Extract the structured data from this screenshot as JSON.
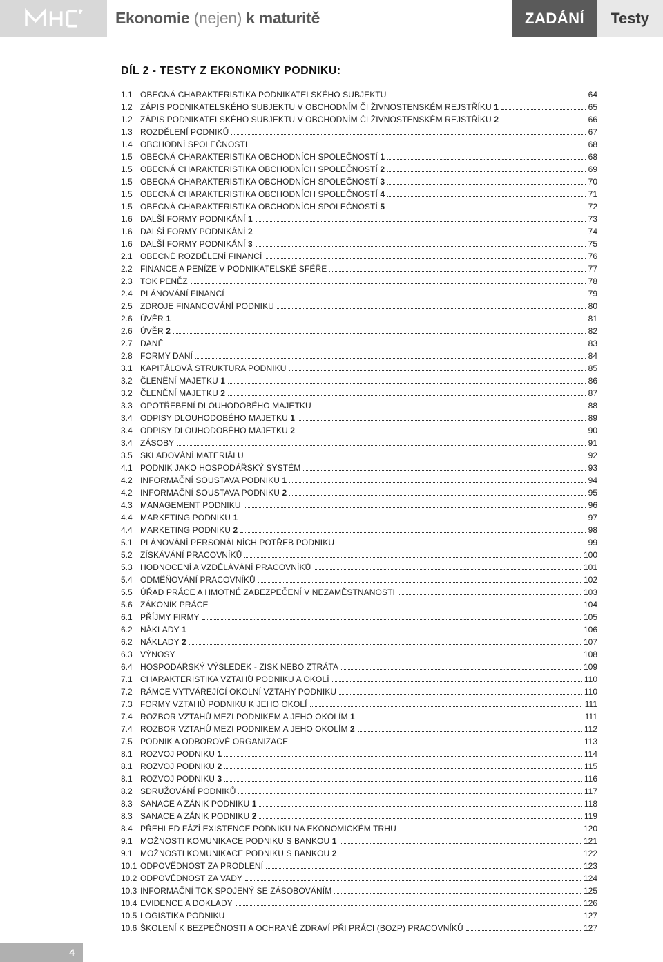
{
  "header": {
    "title_bold1": "Ekonomie",
    "title_light": " (nejen) ",
    "title_bold2": "k maturitě",
    "tag_dark": "ZADÁNÍ",
    "tag_light": "Testy"
  },
  "section_title": "DÍL 2 - TESTY Z EKONOMIKY PODNIKU:",
  "page_number": "4",
  "toc": [
    {
      "num": "1.1",
      "title": "OBECNÁ CHARAKTERISTIKA PODNIKATELSKÉHO SUBJEKTU",
      "suffix": "",
      "page": "64"
    },
    {
      "num": "1.2",
      "title": "ZÁPIS PODNIKATELSKÉHO SUBJEKTU V OBCHODNÍM ČI ŽIVNOSTENSKÉM REJSTŘÍKU ",
      "suffix": "1",
      "page": "65"
    },
    {
      "num": "1.2",
      "title": "ZÁPIS PODNIKATELSKÉHO SUBJEKTU V OBCHODNÍM ČI ŽIVNOSTENSKÉM REJSTŘÍKU ",
      "suffix": "2",
      "page": "66"
    },
    {
      "num": "1.3",
      "title": "ROZDĚLENÍ PODNIKŮ",
      "suffix": "",
      "page": "67"
    },
    {
      "num": "1.4",
      "title": "OBCHODNÍ SPOLEČNOSTI",
      "suffix": "",
      "page": "68"
    },
    {
      "num": "1.5",
      "title": "OBECNÁ CHARAKTERISTIKA OBCHODNÍCH SPOLEČNOSTÍ ",
      "suffix": "1",
      "page": "68"
    },
    {
      "num": "1.5",
      "title": "OBECNÁ CHARAKTERISTIKA OBCHODNÍCH SPOLEČNOSTÍ ",
      "suffix": "2",
      "page": "69"
    },
    {
      "num": "1.5",
      "title": "OBECNÁ CHARAKTERISTIKA OBCHODNÍCH SPOLEČNOSTÍ ",
      "suffix": "3",
      "page": "70"
    },
    {
      "num": "1.5",
      "title": "OBECNÁ CHARAKTERISTIKA OBCHODNÍCH SPOLEČNOSTÍ ",
      "suffix": "4",
      "page": "71"
    },
    {
      "num": "1.5",
      "title": "OBECNÁ CHARAKTERISTIKA OBCHODNÍCH SPOLEČNOSTÍ ",
      "suffix": "5",
      "page": "72"
    },
    {
      "num": "1.6",
      "title": "DALŠÍ FORMY PODNIKÁNÍ ",
      "suffix": "1",
      "page": "73"
    },
    {
      "num": "1.6",
      "title": "DALŠÍ FORMY PODNIKÁNÍ ",
      "suffix": "2",
      "page": "74"
    },
    {
      "num": "1.6",
      "title": "DALŠÍ FORMY PODNIKÁNÍ ",
      "suffix": "3",
      "page": "75"
    },
    {
      "num": "2.1",
      "title": "OBECNÉ ROZDĚLENÍ FINANCÍ",
      "suffix": "",
      "page": "76"
    },
    {
      "num": "2.2",
      "title": "FINANCE A PENÍZE V PODNIKATELSKÉ SFÉŘE",
      "suffix": "",
      "page": "77"
    },
    {
      "num": "2.3",
      "title": "TOK PENĚZ",
      "suffix": "",
      "page": "78"
    },
    {
      "num": "2.4",
      "title": "PLÁNOVÁNÍ FINANCÍ",
      "suffix": "",
      "page": "79"
    },
    {
      "num": "2.5",
      "title": "ZDROJE FINANCOVÁNÍ PODNIKU",
      "suffix": "",
      "page": "80"
    },
    {
      "num": "2.6",
      "title": "ÚVĚR ",
      "suffix": "1",
      "page": "81"
    },
    {
      "num": "2.6",
      "title": "ÚVĚR ",
      "suffix": "2",
      "page": "82"
    },
    {
      "num": "2.7",
      "title": "DANĚ",
      "suffix": "",
      "page": "83"
    },
    {
      "num": "2.8",
      "title": "FORMY DANÍ",
      "suffix": "",
      "page": "84"
    },
    {
      "num": "3.1",
      "title": "KAPITÁLOVÁ STRUKTURA PODNIKU",
      "suffix": "",
      "page": "85"
    },
    {
      "num": "3.2",
      "title": "ČLENĚNÍ MAJETKU ",
      "suffix": "1",
      "page": "86"
    },
    {
      "num": "3.2",
      "title": "ČLENĚNÍ MAJETKU ",
      "suffix": "2",
      "page": "87"
    },
    {
      "num": "3.3",
      "title": "OPOTŘEBENÍ DLOUHODOBÉHO MAJETKU",
      "suffix": "",
      "page": "88"
    },
    {
      "num": "3.4",
      "title": "ODPISY DLOUHODOBÉHO MAJETKU ",
      "suffix": "1",
      "page": "89"
    },
    {
      "num": "3.4",
      "title": "ODPISY DLOUHODOBÉHO MAJETKU ",
      "suffix": "2",
      "page": "90"
    },
    {
      "num": "3.4",
      "title": "ZÁSOBY",
      "suffix": "",
      "page": "91"
    },
    {
      "num": "3.5",
      "title": "SKLADOVÁNÍ MATERIÁLU",
      "suffix": "",
      "page": "92"
    },
    {
      "num": "4.1",
      "title": "PODNIK JAKO HOSPODÁŘSKÝ SYSTÉM",
      "suffix": "",
      "page": "93"
    },
    {
      "num": "4.2",
      "title": "INFORMAČNÍ SOUSTAVA PODNIKU ",
      "suffix": "1",
      "page": "94"
    },
    {
      "num": "4.2",
      "title": "INFORMAČNÍ SOUSTAVA PODNIKU ",
      "suffix": "2",
      "page": "95"
    },
    {
      "num": "4.3",
      "title": "MANAGEMENT PODNIKU",
      "suffix": "",
      "page": "96"
    },
    {
      "num": "4.4",
      "title": "MARKETING PODNIKU ",
      "suffix": "1",
      "page": "97"
    },
    {
      "num": "4.4",
      "title": "MARKETING PODNIKU ",
      "suffix": "2",
      "page": "98"
    },
    {
      "num": "5.1",
      "title": "PLÁNOVÁNÍ PERSONÁLNÍCH POTŘEB PODNIKU",
      "suffix": "",
      "page": "99"
    },
    {
      "num": "5.2",
      "title": "ZÍSKÁVÁNÍ PRACOVNÍKŮ",
      "suffix": "",
      "page": "100"
    },
    {
      "num": "5.3",
      "title": "HODNOCENÍ A VZDĚLÁVÁNÍ PRACOVNÍKŮ",
      "suffix": "",
      "page": "101"
    },
    {
      "num": "5.4",
      "title": "ODMĚŇOVÁNÍ PRACOVNÍKŮ",
      "suffix": "",
      "page": "102"
    },
    {
      "num": "5.5",
      "title": "ÚŘAD PRÁCE A HMOTNÉ ZABEZPEČENÍ V NEZAMĚSTNANOSTI",
      "suffix": "",
      "page": "103"
    },
    {
      "num": "5.6",
      "title": "ZÁKONÍK PRÁCE",
      "suffix": "",
      "page": "104"
    },
    {
      "num": "6.1",
      "title": "PŘÍJMY FIRMY",
      "suffix": "",
      "page": "105"
    },
    {
      "num": "6.2",
      "title": "NÁKLADY ",
      "suffix": "1",
      "page": "106"
    },
    {
      "num": "6.2",
      "title": "NÁKLADY ",
      "suffix": "2",
      "page": "107"
    },
    {
      "num": "6.3",
      "title": "VÝNOSY",
      "suffix": "",
      "page": "108"
    },
    {
      "num": "6.4",
      "title": "HOSPODÁŘSKÝ VÝSLEDEK - ZISK NEBO ZTRÁTA",
      "suffix": "",
      "page": "109"
    },
    {
      "num": "7.1",
      "title": "CHARAKTERISTIKA VZTAHŮ PODNIKU A OKOLÍ",
      "suffix": "",
      "page": "110"
    },
    {
      "num": "7.2",
      "title": "RÁMCE VYTVÁŘEJÍCÍ OKOLNÍ VZTAHY PODNIKU",
      "suffix": "",
      "page": "110"
    },
    {
      "num": "7.3",
      "title": "FORMY VZTAHŮ PODNIKU K JEHO OKOLÍ",
      "suffix": "",
      "page": "111"
    },
    {
      "num": "7.4",
      "title": "ROZBOR VZTAHŮ MEZI PODNIKEM A JEHO OKOLÍM ",
      "suffix": "1",
      "page": "111"
    },
    {
      "num": "7.4",
      "title": "ROZBOR VZTAHŮ MEZI PODNIKEM A JEHO OKOLÍM ",
      "suffix": "2",
      "page": "112"
    },
    {
      "num": "7.5",
      "title": "PODNIK A ODBOROVÉ ORGANIZACE",
      "suffix": "",
      "page": "113"
    },
    {
      "num": "8.1",
      "title": "ROZVOJ PODNIKU ",
      "suffix": "1",
      "page": "114"
    },
    {
      "num": "8.1",
      "title": "ROZVOJ PODNIKU ",
      "suffix": "2",
      "page": "115"
    },
    {
      "num": "8.1",
      "title": "ROZVOJ PODNIKU ",
      "suffix": "3",
      "page": "116"
    },
    {
      "num": "8.2",
      "title": "SDRUŽOVÁNÍ PODNIKŮ",
      "suffix": "",
      "page": "117"
    },
    {
      "num": "8.3",
      "title": "SANACE A ZÁNIK PODNIKU ",
      "suffix": "1",
      "page": "118"
    },
    {
      "num": "8.3",
      "title": "SANACE A ZÁNIK PODNIKU ",
      "suffix": "2",
      "page": "119"
    },
    {
      "num": "8.4",
      "title": "PŘEHLED FÁZÍ EXISTENCE PODNIKU NA EKONOMICKÉM TRHU",
      "suffix": "",
      "page": "120"
    },
    {
      "num": "9.1",
      "title": "MOŽNOSTI KOMUNIKACE PODNIKU S BANKOU ",
      "suffix": "1",
      "page": "121"
    },
    {
      "num": "9.1",
      "title": "MOŽNOSTI KOMUNIKACE PODNIKU S BANKOU ",
      "suffix": "2",
      "page": "122"
    },
    {
      "num": "10.1",
      "title": "ODPOVĚDNOST ZA PRODLENÍ",
      "suffix": "",
      "page": "123"
    },
    {
      "num": "10.2",
      "title": "ODPOVĚDNOST ZA VADY",
      "suffix": "",
      "page": "124"
    },
    {
      "num": "10.3",
      "title": "INFORMAČNÍ TOK SPOJENÝ SE ZÁSOBOVÁNÍM",
      "suffix": "",
      "page": "125"
    },
    {
      "num": "10.4",
      "title": "EVIDENCE A DOKLADY",
      "suffix": "",
      "page": "126"
    },
    {
      "num": "10.5",
      "title": "LOGISTIKA PODNIKU",
      "suffix": "",
      "page": "127"
    },
    {
      "num": "10.6",
      "title": "ŠKOLENÍ K BEZPEČNOSTI A OCHRANĚ ZDRAVÍ PŘI PRÁCI (BOZP) PRACOVNÍKŮ",
      "suffix": "",
      "page": "127"
    }
  ]
}
